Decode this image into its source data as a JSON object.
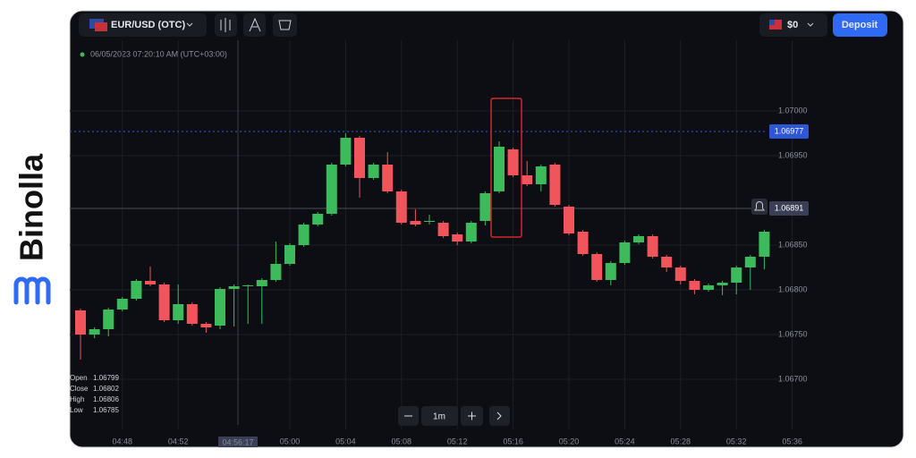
{
  "brand": "Binolla",
  "header": {
    "pair": "EUR/USD (OTC)",
    "balance": "$0",
    "deposit": "Deposit"
  },
  "timestamp": "06/05/2023 07:20:10 AM (UTC+03:00)",
  "controls": {
    "timeframe": "1m"
  },
  "crosshair_time": "04:56:17",
  "ohlc": {
    "labels": [
      "Open",
      "Close",
      "High",
      "Low"
    ],
    "values": [
      1.06799,
      1.06802,
      1.06806,
      1.06785
    ]
  },
  "price_lines": {
    "values": [
      1.06977,
      1.06891
    ]
  },
  "chart": {
    "type": "candlestick",
    "categories": [
      null,
      null,
      null,
      "04:48",
      null,
      null,
      null,
      "04:52",
      null,
      null,
      null,
      null,
      null,
      null,
      null,
      "05:00",
      null,
      null,
      null,
      "05:04",
      null,
      null,
      null,
      "05:08",
      null,
      null,
      null,
      "05:12",
      null,
      null,
      null,
      "05:16",
      null,
      null,
      null,
      "05:20",
      null,
      null,
      null,
      "05:24",
      null,
      null,
      null,
      "05:28",
      null,
      null,
      null,
      "05:32",
      null,
      null,
      null,
      "05:36"
    ],
    "open": [
      1.06777,
      1.0675,
      1.06756,
      1.06778,
      1.0679,
      1.0681,
      1.06806,
      1.06766,
      1.06784,
      1.06762,
      1.0676,
      1.06801,
      1.06804,
      1.06804,
      1.06811,
      1.06829,
      1.0685,
      1.06873,
      1.06885,
      1.0694,
      1.0697,
      1.06925,
      1.0694,
      1.0691,
      1.06877,
      1.06876,
      1.06875,
      1.06862,
      1.06854,
      1.06877,
      1.0691,
      1.06957,
      1.06928,
      1.06918,
      1.0694,
      1.06893,
      1.06865,
      1.0684,
      1.06811,
      1.0683,
      1.06853,
      1.0686,
      1.06837,
      1.06825,
      1.0681,
      1.068,
      1.06805,
      1.06808,
      1.06825,
      1.06837,
      null,
      null
    ],
    "high": [
      1.06779,
      1.06758,
      1.0678,
      1.06792,
      1.06812,
      1.06826,
      1.06808,
      1.06806,
      1.06786,
      1.06764,
      1.06803,
      1.06806,
      1.06806,
      1.06813,
      1.06854,
      1.06852,
      1.06875,
      1.06887,
      1.06942,
      1.06975,
      1.06972,
      1.06942,
      1.06954,
      1.06912,
      1.0689,
      1.06884,
      1.06877,
      1.06864,
      1.06877,
      1.0691,
      1.06966,
      1.06959,
      1.06944,
      1.0694,
      1.06942,
      1.06895,
      1.06867,
      1.06842,
      1.06832,
      1.06855,
      1.06862,
      1.06862,
      1.06839,
      1.06827,
      1.06812,
      1.06807,
      1.0681,
      1.06827,
      1.06839,
      1.06867,
      null,
      null
    ],
    "low": [
      1.06722,
      1.06746,
      1.06748,
      1.06776,
      1.06788,
      1.06804,
      1.06764,
      1.06762,
      1.0676,
      1.06752,
      1.06756,
      1.06759,
      1.06762,
      1.06762,
      1.06809,
      1.06827,
      1.06848,
      1.06871,
      1.06883,
      1.06938,
      1.06903,
      1.06923,
      1.06908,
      1.06873,
      1.06871,
      1.06873,
      1.06858,
      1.0685,
      1.06852,
      1.06872,
      1.06908,
      1.06926,
      1.06916,
      1.0691,
      1.06893,
      1.06861,
      1.06838,
      1.06809,
      1.06805,
      1.06828,
      1.06851,
      1.06835,
      1.0682,
      1.06806,
      1.06795,
      1.06798,
      1.06794,
      1.06795,
      1.068,
      1.06823,
      null,
      null
    ],
    "close": [
      1.0675,
      1.06756,
      1.06778,
      1.0679,
      1.0681,
      1.06806,
      1.06766,
      1.06784,
      1.06762,
      1.06758,
      1.06801,
      1.06804,
      1.06805,
      1.06811,
      1.06829,
      1.0685,
      1.06873,
      1.06885,
      1.0694,
      1.0697,
      1.06925,
      1.0694,
      1.0691,
      1.06875,
      1.06873,
      1.06877,
      1.0686,
      1.06854,
      1.06875,
      1.06908,
      1.0696,
      1.06928,
      1.06918,
      1.06938,
      1.06895,
      1.06863,
      1.0684,
      1.06811,
      1.0683,
      1.06853,
      1.0686,
      1.06837,
      1.06825,
      1.0681,
      1.068,
      1.06805,
      1.06808,
      1.06825,
      1.06837,
      1.06865,
      null,
      null
    ],
    "up_color": "#3dbb5c",
    "down_color": "#f2545b",
    "ylim": [
      1.06644,
      1.07074
    ],
    "yticks": [
      {
        "value": 1.07,
        "label": "1.07000"
      },
      {
        "value": 1.0695,
        "label": "1.06950"
      },
      {
        "value": 1.0685,
        "label": "1.06850"
      },
      {
        "value": 1.068,
        "label": "1.06800"
      },
      {
        "value": 1.0675,
        "label": "1.06750"
      },
      {
        "value": 1.067,
        "label": "1.06700"
      }
    ],
    "grid": true
  }
}
